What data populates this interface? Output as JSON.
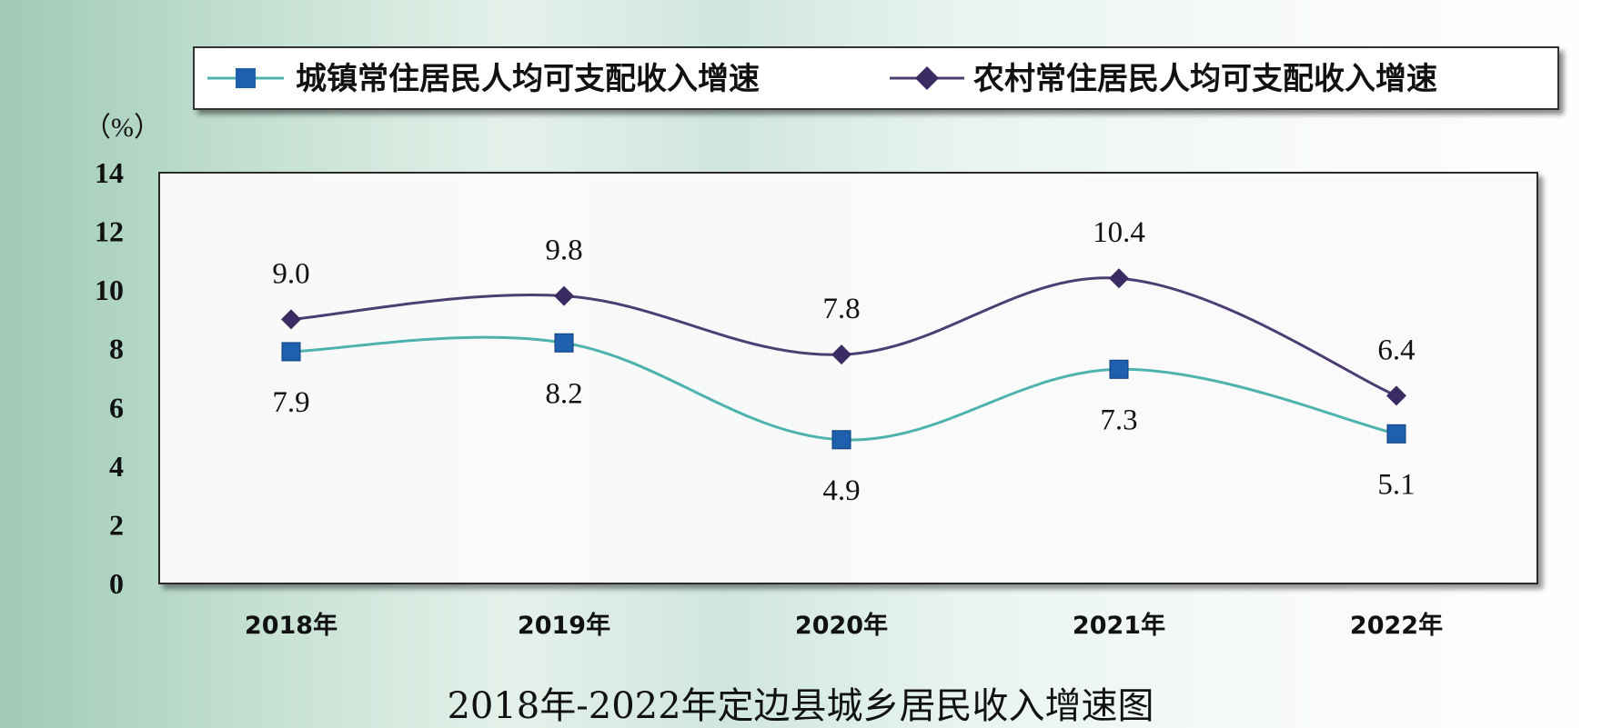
{
  "chart_data": {
    "type": "line",
    "title": "2018年-2022年定边县城乡居民收入增速图",
    "unit_label": "（%）",
    "categories": [
      "2018年",
      "2019年",
      "2020年",
      "2021年",
      "2022年"
    ],
    "ylim": [
      0,
      14
    ],
    "yticks": [
      "0",
      "2",
      "4",
      "6",
      "8",
      "10",
      "12",
      "14"
    ],
    "legend_placement": "top",
    "series": [
      {
        "name": "城镇常住居民人均可支配收入增速",
        "values": [
          7.9,
          8.2,
          4.9,
          7.3,
          5.1
        ],
        "labels": [
          "7.9",
          "8.2",
          "4.9",
          "7.3",
          "5.1"
        ],
        "color": "#4fb3ad",
        "marker_color": "#1e5fae",
        "marker": "square"
      },
      {
        "name": "农村常住居民人均可支配收入增速",
        "values": [
          9.0,
          9.8,
          7.8,
          10.4,
          6.4
        ],
        "labels": [
          "9.0",
          "9.8",
          "7.8",
          "10.4",
          "6.4"
        ],
        "color": "#4c3d73",
        "marker_color": "#3a2b62",
        "marker": "diamond"
      }
    ]
  }
}
